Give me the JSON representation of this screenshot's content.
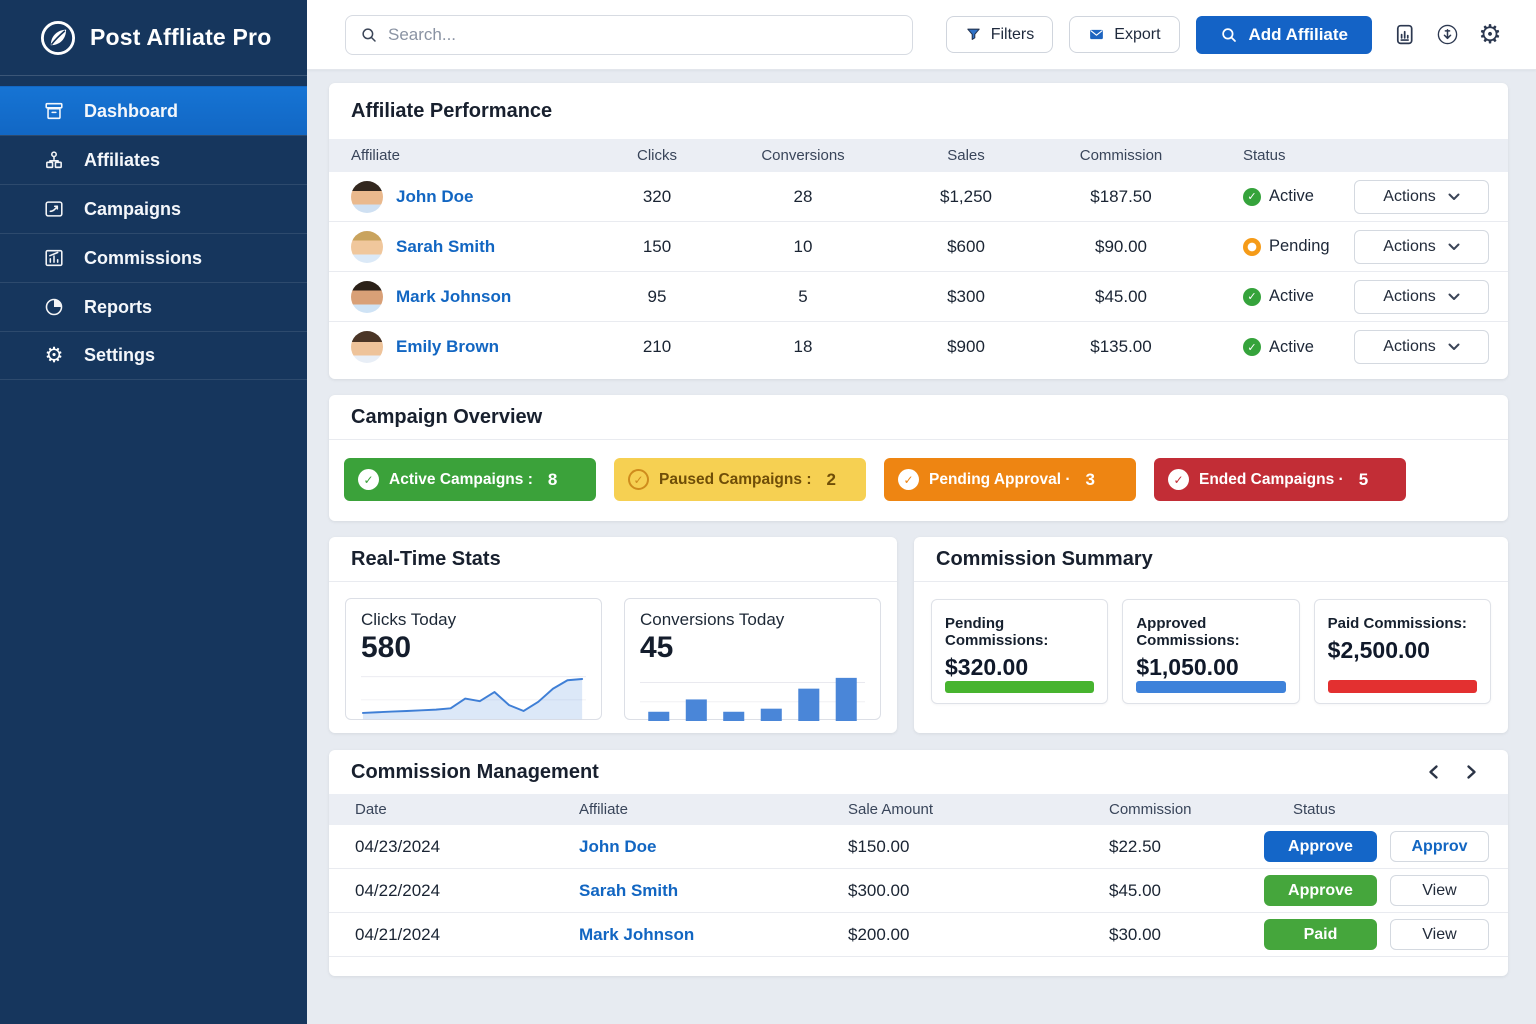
{
  "app": {
    "name": "Post Affliate Pro",
    "logo_icon": "leaf-icon"
  },
  "sidebar": {
    "items": [
      {
        "id": "dashboard",
        "label": "Dashboard",
        "icon": "dashboard-icon",
        "active": true
      },
      {
        "id": "affiliates",
        "label": "Affiliates",
        "icon": "affiliates-icon",
        "active": false
      },
      {
        "id": "campaigns",
        "label": "Campaigns",
        "icon": "campaigns-icon",
        "active": false
      },
      {
        "id": "commissions",
        "label": "Commissions",
        "icon": "commissions-icon",
        "active": false
      },
      {
        "id": "reports",
        "label": "Reports",
        "icon": "reports-icon",
        "active": false
      },
      {
        "id": "settings",
        "label": "Settings",
        "icon": "gear-icon",
        "active": false
      }
    ]
  },
  "topbar": {
    "search_placeholder": "Search...",
    "filters_label": "Filters",
    "filters_icon": "funnel-icon",
    "export_label": "Export",
    "export_icon": "envelope-icon",
    "add_affiliate_label": "Add Affiliate",
    "add_affiliate_icon": "search-icon",
    "icons_right": [
      "device-report-icon",
      "download-circle-icon",
      "gear-icon"
    ]
  },
  "affiliate_performance": {
    "title": "Affiliate Performance",
    "columns": [
      "Affiliate",
      "Clicks",
      "Conversions",
      "Sales",
      "Commission",
      "Status"
    ],
    "actions_label": "Actions",
    "status_colors": {
      "Active": "#35a33b",
      "Pending": "#f59b18"
    },
    "rows": [
      {
        "name": "John Doe",
        "clicks": "320",
        "conversions": "28",
        "sales": "$1,250",
        "commission": "$187.50",
        "status": "Active"
      },
      {
        "name": "Sarah Smith",
        "clicks": "150",
        "conversions": "10",
        "sales": "$600",
        "commission": "$90.00",
        "status": "Pending"
      },
      {
        "name": "Mark Johnson",
        "clicks": "95",
        "conversions": "5",
        "sales": "$300",
        "commission": "$45.00",
        "status": "Active"
      },
      {
        "name": "Emily Brown",
        "clicks": "210",
        "conversions": "18",
        "sales": "$900",
        "commission": "$135.00",
        "status": "Active"
      }
    ]
  },
  "campaign_overview": {
    "title": "Campaign Overview",
    "badges": [
      {
        "label": "Active Campaigns",
        "separator": ":",
        "count": "8",
        "bg": "#3ba23a",
        "fg": "#ffffff",
        "icon_style": "solid",
        "icon_bg": "#ffffff",
        "icon_fg": "#3ba23a"
      },
      {
        "label": "Paused Campaigns",
        "separator": ":",
        "count": "2",
        "bg": "#f6d052",
        "fg": "#6f4e08",
        "icon_style": "ring",
        "icon_bg": "transparent",
        "icon_fg": "#cf8c1d"
      },
      {
        "label": "Pending Approval",
        "separator": "·",
        "count": "3",
        "bg": "#ee8512",
        "fg": "#ffffff",
        "icon_style": "solid",
        "icon_bg": "#ffffff",
        "icon_fg": "#ee8512"
      },
      {
        "label": "Ended Campaigns",
        "separator": "·",
        "count": "5",
        "bg": "#c22d36",
        "fg": "#ffffff",
        "icon_style": "solid",
        "icon_bg": "#ffffff",
        "icon_fg": "#c22d36"
      }
    ]
  },
  "realtime_stats": {
    "title": "Real-Time Stats",
    "clicks_card": {
      "label": "Clicks Today",
      "value": "580"
    },
    "conversions_card": {
      "label": "Conversions Today",
      "value": "45"
    }
  },
  "commission_summary": {
    "title": "Commission Summary",
    "cards": [
      {
        "label": "Pending Commissions:",
        "value": "$320.00",
        "bar_color": "#47b42f"
      },
      {
        "label": "Approved Commissions:",
        "value": "$1,050.00",
        "bar_color": "#3e82da"
      },
      {
        "label": "Paid Commissions:",
        "value": "$2,500.00",
        "bar_color": "#e33030"
      }
    ]
  },
  "commission_management": {
    "title": "Commission Management",
    "columns": [
      "Date",
      "Affiliate",
      "Sale Amount",
      "Commission",
      "Status"
    ],
    "pager_icons": [
      "chevron-left-icon",
      "chevron-right-icon"
    ],
    "rows": [
      {
        "date": "04/23/2024",
        "affiliate": "John Doe",
        "sale": "$150.00",
        "commission": "$22.50",
        "primary": {
          "label": "Approve",
          "color": "blue"
        },
        "secondary": {
          "label": "Approv",
          "style": "link"
        }
      },
      {
        "date": "04/22/2024",
        "affiliate": "Sarah Smith",
        "sale": "$300.00",
        "commission": "$45.00",
        "primary": {
          "label": "Approve",
          "color": "green"
        },
        "secondary": {
          "label": "View",
          "style": "plain"
        }
      },
      {
        "date": "04/21/2024",
        "affiliate": "Mark Johnson",
        "sale": "$200.00",
        "commission": "$30.00",
        "primary": {
          "label": "Paid",
          "color": "green"
        },
        "secondary": {
          "label": "View",
          "style": "plain"
        }
      }
    ]
  },
  "chart_data": [
    {
      "type": "line",
      "title": "Clicks Today",
      "x": [
        1,
        2,
        3,
        4,
        5,
        6,
        7,
        8,
        9,
        10,
        11,
        12,
        13,
        14,
        15,
        16
      ],
      "values": [
        8,
        9,
        10,
        11,
        12,
        13,
        15,
        30,
        26,
        40,
        20,
        11,
        25,
        45,
        58,
        60
      ],
      "ylim": [
        0,
        65
      ],
      "line_color": "#3f7fd6",
      "fill_color": "rgba(63,127,214,0.18)",
      "grid": true,
      "legend": "none",
      "xlabel": "",
      "ylabel": ""
    },
    {
      "type": "bar",
      "title": "Conversions Today",
      "values": [
        12,
        28,
        12,
        16,
        42,
        56
      ],
      "ylim": [
        0,
        60
      ],
      "bar_color": "#4a86d8",
      "grid": true,
      "legend": "none",
      "xlabel": "",
      "ylabel": ""
    }
  ]
}
